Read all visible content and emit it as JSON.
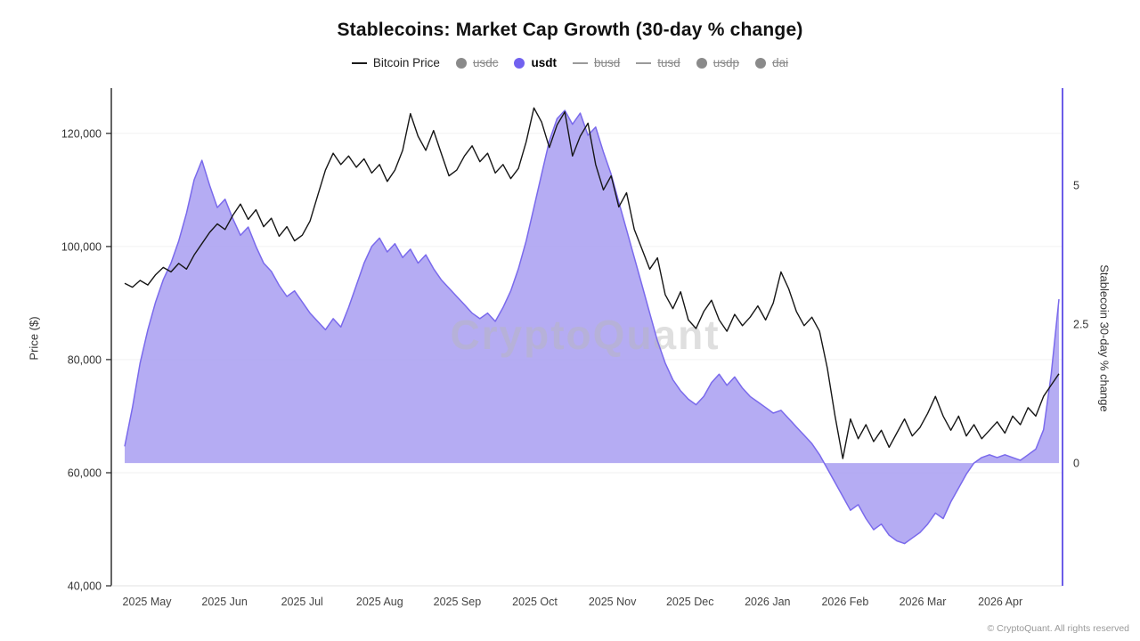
{
  "header": {
    "title": "Stablecoins: Market Cap Growth (30-day % change)"
  },
  "legend": {
    "items": [
      {
        "label": "Bitcoin Price",
        "marker": "line",
        "color": "#1a1a1a",
        "struck": false,
        "bold": false
      },
      {
        "label": "usdc",
        "marker": "dot",
        "color": "#8a8a8a",
        "struck": true,
        "bold": false
      },
      {
        "label": "usdt",
        "marker": "dot",
        "color": "#7161ef",
        "struck": false,
        "bold": true
      },
      {
        "label": "busd",
        "marker": "line",
        "color": "#9a9a9a",
        "struck": true,
        "bold": false
      },
      {
        "label": "tusd",
        "marker": "line",
        "color": "#9a9a9a",
        "struck": true,
        "bold": false
      },
      {
        "label": "usdp",
        "marker": "dot",
        "color": "#8a8a8a",
        "struck": true,
        "bold": false
      },
      {
        "label": "dai",
        "marker": "dot",
        "color": "#8a8a8a",
        "struck": true,
        "bold": false
      }
    ]
  },
  "watermark": "CryptoQuant",
  "footer": {
    "text": "© CryptoQuant. All rights reserved"
  },
  "chart_data": {
    "type": "line+area",
    "title": "Stablecoins: Market Cap Growth (30-day % change)",
    "grid": false,
    "left_axis": {
      "label": "Price ($)",
      "min": 40000,
      "max": 128000,
      "ticks": [
        {
          "label": "120,000",
          "value": 120000
        },
        {
          "label": "100,000",
          "value": 100000
        },
        {
          "label": "80,000",
          "value": 80000
        },
        {
          "label": "60,000",
          "value": 60000
        },
        {
          "label": "40,000",
          "value": 40000
        }
      ]
    },
    "right_axis": {
      "label": "Stablecoin 30-day % change",
      "min": -2.21,
      "max": 6.75,
      "ticks": [
        {
          "label": "5",
          "value": 5
        },
        {
          "label": "2.5",
          "value": 2.5
        },
        {
          "label": "0",
          "value": 0
        }
      ]
    },
    "x_ticks": [
      "2025 May",
      "2025 Jun",
      "2025 Jul",
      "2025 Aug",
      "2025 Sep",
      "2025 Oct",
      "2025 Nov",
      "2025 Dec",
      "2026 Jan",
      "2026 Feb",
      "2026 Mar",
      "2026 Apr"
    ],
    "series": [
      {
        "name": "Bitcoin Price",
        "axis": "left",
        "style": "line",
        "color": "#161616",
        "values": [
          93500,
          92800,
          94000,
          93200,
          95000,
          96300,
          95500,
          97000,
          96000,
          98500,
          100500,
          102500,
          104000,
          103000,
          105500,
          107500,
          104800,
          106500,
          103500,
          105000,
          101800,
          103500,
          101000,
          102000,
          104500,
          109000,
          113500,
          116500,
          114500,
          116000,
          114000,
          115500,
          113000,
          114500,
          111500,
          113500,
          117000,
          123500,
          119500,
          117000,
          120500,
          116500,
          112500,
          113500,
          116000,
          117800,
          115000,
          116500,
          113000,
          114500,
          112000,
          113800,
          118500,
          124500,
          122000,
          117500,
          121500,
          123800,
          116000,
          119500,
          121800,
          114500,
          110000,
          112500,
          107000,
          109500,
          103000,
          99500,
          96000,
          98000,
          91500,
          89000,
          92000,
          87000,
          85500,
          88500,
          90500,
          87000,
          85000,
          88000,
          86000,
          87500,
          89500,
          87000,
          90000,
          95500,
          92500,
          88500,
          86000,
          87500,
          85000,
          78500,
          70000,
          62500,
          69500,
          66000,
          68500,
          65500,
          67500,
          64500,
          67000,
          69500,
          66500,
          68000,
          70500,
          73500,
          70000,
          67500,
          70000,
          66500,
          68500,
          66000,
          67500,
          69000,
          67000,
          70000,
          68500,
          71500,
          70000,
          73500,
          75500,
          77500
        ]
      },
      {
        "name": "usdt",
        "axis": "right",
        "style": "area",
        "color": "#7a6aec",
        "fill": "#a89df1",
        "baseline": 0,
        "values": [
          0.3,
          1.0,
          1.8,
          2.4,
          2.9,
          3.3,
          3.6,
          4.0,
          4.5,
          5.1,
          5.45,
          5.0,
          4.6,
          4.75,
          4.4,
          4.1,
          4.25,
          3.9,
          3.6,
          3.45,
          3.2,
          3.0,
          3.1,
          2.9,
          2.7,
          2.55,
          2.4,
          2.6,
          2.45,
          2.8,
          3.2,
          3.6,
          3.9,
          4.05,
          3.8,
          3.95,
          3.7,
          3.85,
          3.6,
          3.75,
          3.5,
          3.3,
          3.15,
          3.0,
          2.85,
          2.7,
          2.6,
          2.7,
          2.55,
          2.8,
          3.1,
          3.5,
          4.0,
          4.6,
          5.2,
          5.8,
          6.2,
          6.35,
          6.1,
          6.3,
          5.9,
          6.05,
          5.6,
          5.2,
          4.7,
          4.2,
          3.7,
          3.2,
          2.7,
          2.2,
          1.8,
          1.5,
          1.3,
          1.15,
          1.05,
          1.2,
          1.45,
          1.6,
          1.4,
          1.55,
          1.35,
          1.2,
          1.1,
          1.0,
          0.9,
          0.95,
          0.8,
          0.65,
          0.5,
          0.35,
          0.15,
          -0.1,
          -0.35,
          -0.6,
          -0.85,
          -0.75,
          -1.0,
          -1.2,
          -1.1,
          -1.3,
          -1.4,
          -1.45,
          -1.35,
          -1.25,
          -1.1,
          -0.9,
          -1.0,
          -0.7,
          -0.45,
          -0.2,
          0.0,
          0.1,
          0.15,
          0.1,
          0.15,
          0.1,
          0.05,
          0.15,
          0.25,
          0.6,
          1.6,
          2.95
        ]
      }
    ]
  }
}
